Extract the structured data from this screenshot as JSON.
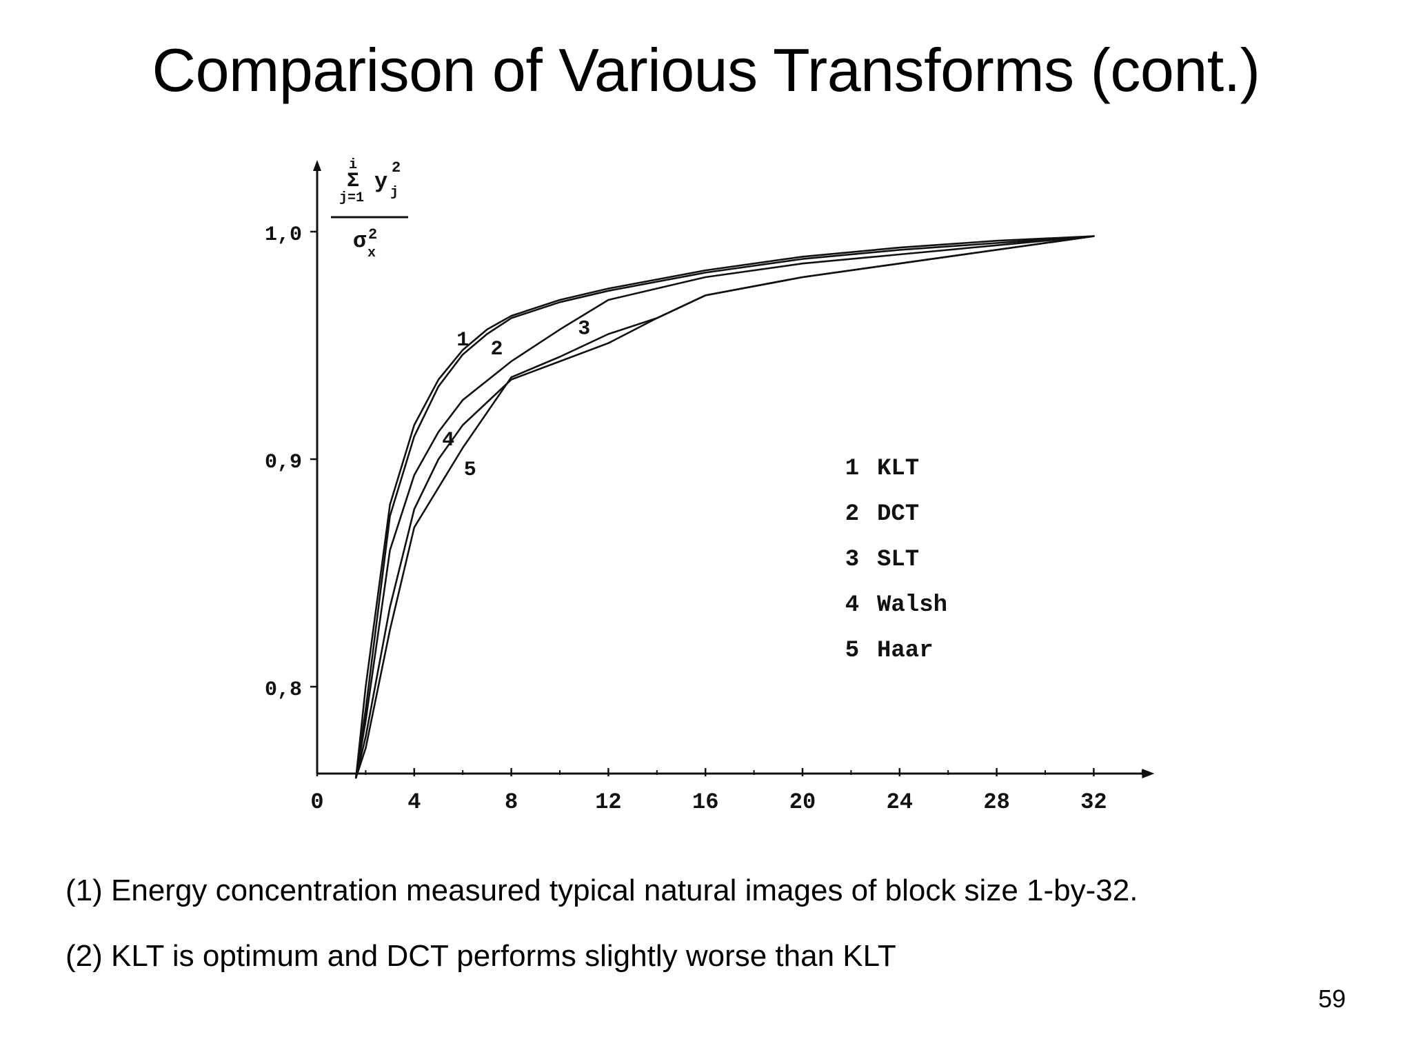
{
  "slide": {
    "title": "Comparison of Various Transforms (cont.)",
    "captions": [
      "(1) Energy concentration measured typical natural images of block size 1-by-32.",
      "(2) KLT is optimum and DCT performs slightly worse than KLT"
    ],
    "page_number": "59"
  },
  "chart_data": {
    "type": "line",
    "title": "",
    "xlabel": "",
    "ylabel": {
      "sum_top": "i",
      "sum_symbol": "Σ",
      "sum_bottom": "j=1",
      "term": "y",
      "term_sub": "j",
      "term_sup": "2",
      "denominator": "σ",
      "denominator_sub": "x",
      "denominator_sup": "2"
    },
    "xlim": [
      0,
      34.5
    ],
    "ylim": [
      0.76,
      1.04
    ],
    "x_ticks": [
      "0",
      "4",
      "8",
      "12",
      "16",
      "20",
      "24",
      "28",
      "32"
    ],
    "y_ticks": [
      "0,8",
      "0,9",
      "1,0"
    ],
    "series": [
      {
        "name": "KLT",
        "number": "1",
        "points": [
          [
            1.6,
            0.76
          ],
          [
            2,
            0.8
          ],
          [
            3,
            0.88
          ],
          [
            4,
            0.915
          ],
          [
            5,
            0.935
          ],
          [
            6,
            0.948
          ],
          [
            7,
            0.957
          ],
          [
            8,
            0.963
          ],
          [
            10,
            0.97
          ],
          [
            12,
            0.975
          ],
          [
            16,
            0.983
          ],
          [
            20,
            0.989
          ],
          [
            24,
            0.993
          ],
          [
            28,
            0.996
          ],
          [
            32,
            0.998
          ]
        ]
      },
      {
        "name": "DCT",
        "number": "2",
        "points": [
          [
            1.6,
            0.76
          ],
          [
            2,
            0.79
          ],
          [
            3,
            0.875
          ],
          [
            4,
            0.91
          ],
          [
            5,
            0.932
          ],
          [
            6,
            0.946
          ],
          [
            7,
            0.955
          ],
          [
            8,
            0.962
          ],
          [
            10,
            0.969
          ],
          [
            12,
            0.974
          ],
          [
            16,
            0.982
          ],
          [
            20,
            0.988
          ],
          [
            24,
            0.992
          ],
          [
            28,
            0.995
          ],
          [
            32,
            0.998
          ]
        ]
      },
      {
        "name": "SLT",
        "number": "3",
        "points": [
          [
            1.6,
            0.76
          ],
          [
            2,
            0.785
          ],
          [
            3,
            0.86
          ],
          [
            4,
            0.893
          ],
          [
            5,
            0.912
          ],
          [
            6,
            0.926
          ],
          [
            8,
            0.943
          ],
          [
            10,
            0.957
          ],
          [
            12,
            0.97
          ],
          [
            16,
            0.98
          ],
          [
            20,
            0.986
          ],
          [
            24,
            0.99
          ],
          [
            28,
            0.994
          ],
          [
            32,
            0.998
          ]
        ]
      },
      {
        "name": "Walsh",
        "number": "4",
        "points": [
          [
            1.6,
            0.76
          ],
          [
            2,
            0.778
          ],
          [
            3,
            0.835
          ],
          [
            4,
            0.878
          ],
          [
            5,
            0.9
          ],
          [
            6,
            0.915
          ],
          [
            8,
            0.935
          ],
          [
            10,
            0.943
          ],
          [
            12,
            0.951
          ],
          [
            14,
            0.962
          ],
          [
            16,
            0.972
          ],
          [
            20,
            0.98
          ],
          [
            24,
            0.986
          ],
          [
            28,
            0.992
          ],
          [
            32,
            0.998
          ]
        ]
      },
      {
        "name": "Haar",
        "number": "5",
        "points": [
          [
            1.6,
            0.76
          ],
          [
            2,
            0.773
          ],
          [
            3,
            0.825
          ],
          [
            4,
            0.87
          ],
          [
            6,
            0.905
          ],
          [
            8,
            0.936
          ],
          [
            10,
            0.945
          ],
          [
            12,
            0.955
          ],
          [
            14,
            0.962
          ],
          [
            16,
            0.972
          ],
          [
            20,
            0.98
          ],
          [
            24,
            0.986
          ],
          [
            28,
            0.992
          ],
          [
            32,
            0.998
          ]
        ]
      }
    ],
    "curve_labels": [
      {
        "text": "1",
        "x": 6.0,
        "y": 0.95
      },
      {
        "text": "2",
        "x": 7.4,
        "y": 0.946
      },
      {
        "text": "3",
        "x": 11.0,
        "y": 0.955
      },
      {
        "text": "4",
        "x": 5.4,
        "y": 0.906
      },
      {
        "text": "5",
        "x": 6.3,
        "y": 0.893
      }
    ],
    "legend_position": "right",
    "grid": false
  }
}
